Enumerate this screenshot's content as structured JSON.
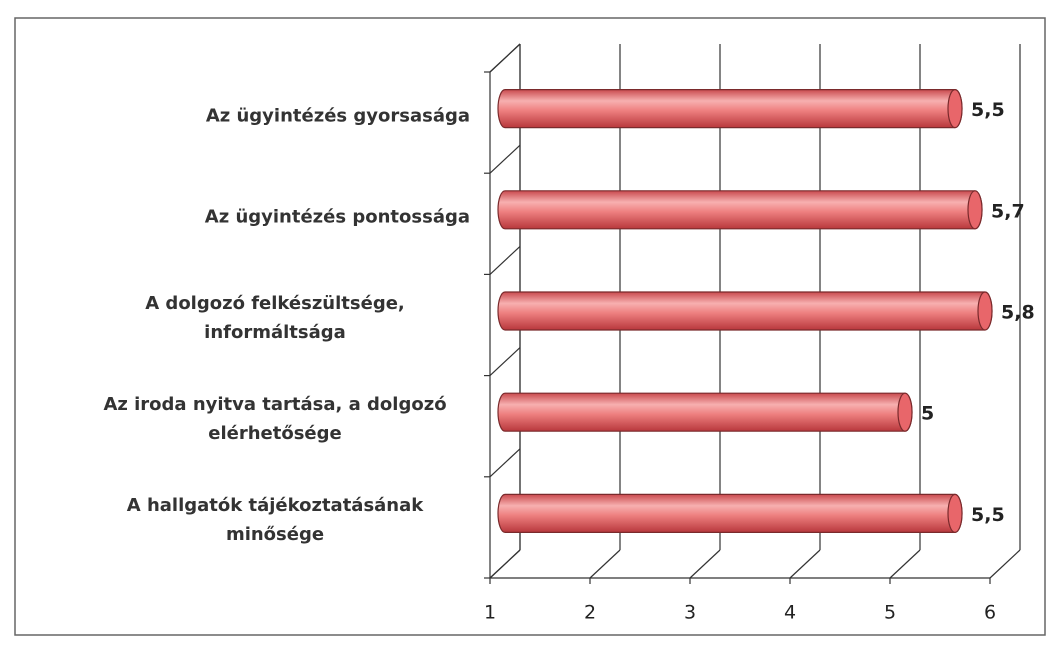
{
  "chart_data": {
    "type": "bar",
    "orientation": "horizontal",
    "categories": [
      "Az ügyintézés gyorsasága",
      "Az ügyintézés pontossága",
      "A dolgozó felkészültsége, informáltsága",
      "Az iroda nyitva tartása, a dolgozó elérhetősége",
      "A hallgatók tájékoztatásának minősége"
    ],
    "values": [
      5.5,
      5.7,
      5.8,
      5,
      5.5
    ],
    "value_labels": [
      "5,5",
      "5,7",
      "5,8",
      "5",
      "5,5"
    ],
    "color": "#e8666a",
    "xlim": [
      1,
      6
    ],
    "xticks": [
      1,
      2,
      3,
      4,
      5,
      6
    ],
    "grid": true
  }
}
